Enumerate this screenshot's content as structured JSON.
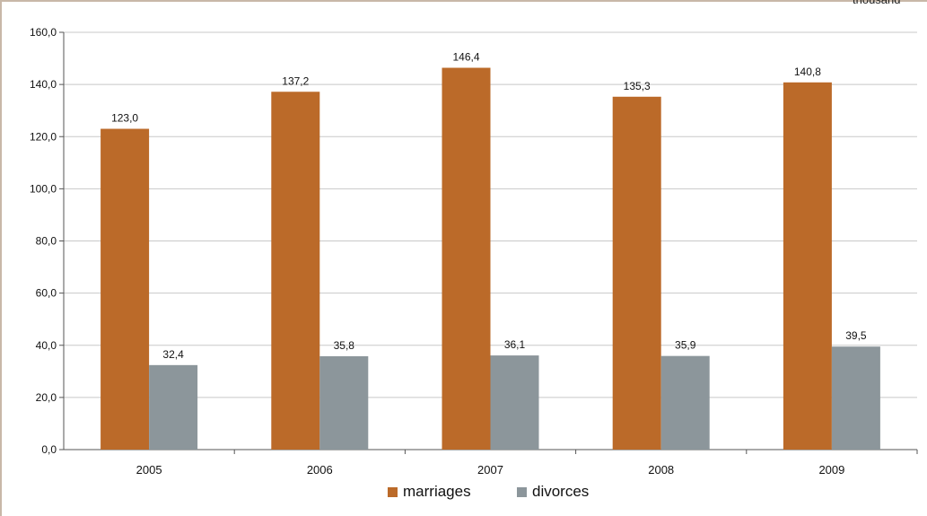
{
  "unit_text": "thousand",
  "chart_data": {
    "type": "bar",
    "categories": [
      "2005",
      "2006",
      "2007",
      "2008",
      "2009"
    ],
    "series": [
      {
        "name": "marriages",
        "values": [
          123.0,
          137.2,
          146.4,
          135.3,
          140.8
        ],
        "labels": [
          "123,0",
          "137,2",
          "146,4",
          "135,3",
          "140,8"
        ],
        "color": "#bb6a29"
      },
      {
        "name": "divorces",
        "values": [
          32.4,
          35.8,
          36.1,
          35.9,
          39.5
        ],
        "labels": [
          "32,4",
          "35,8",
          "36,1",
          "35,9",
          "39,5"
        ],
        "color": "#8c969b"
      }
    ],
    "ylim": [
      0,
      160
    ],
    "ytick_values": [
      0,
      20,
      40,
      60,
      80,
      100,
      120,
      140,
      160
    ],
    "ytick_labels": [
      "0,0",
      "20,0",
      "40,0",
      "60,0",
      "80,0",
      "100,0",
      "120,0",
      "140,0",
      "160,0"
    ],
    "grid": true,
    "legend_position": "bottom",
    "title": "",
    "xlabel": "",
    "ylabel": ""
  }
}
